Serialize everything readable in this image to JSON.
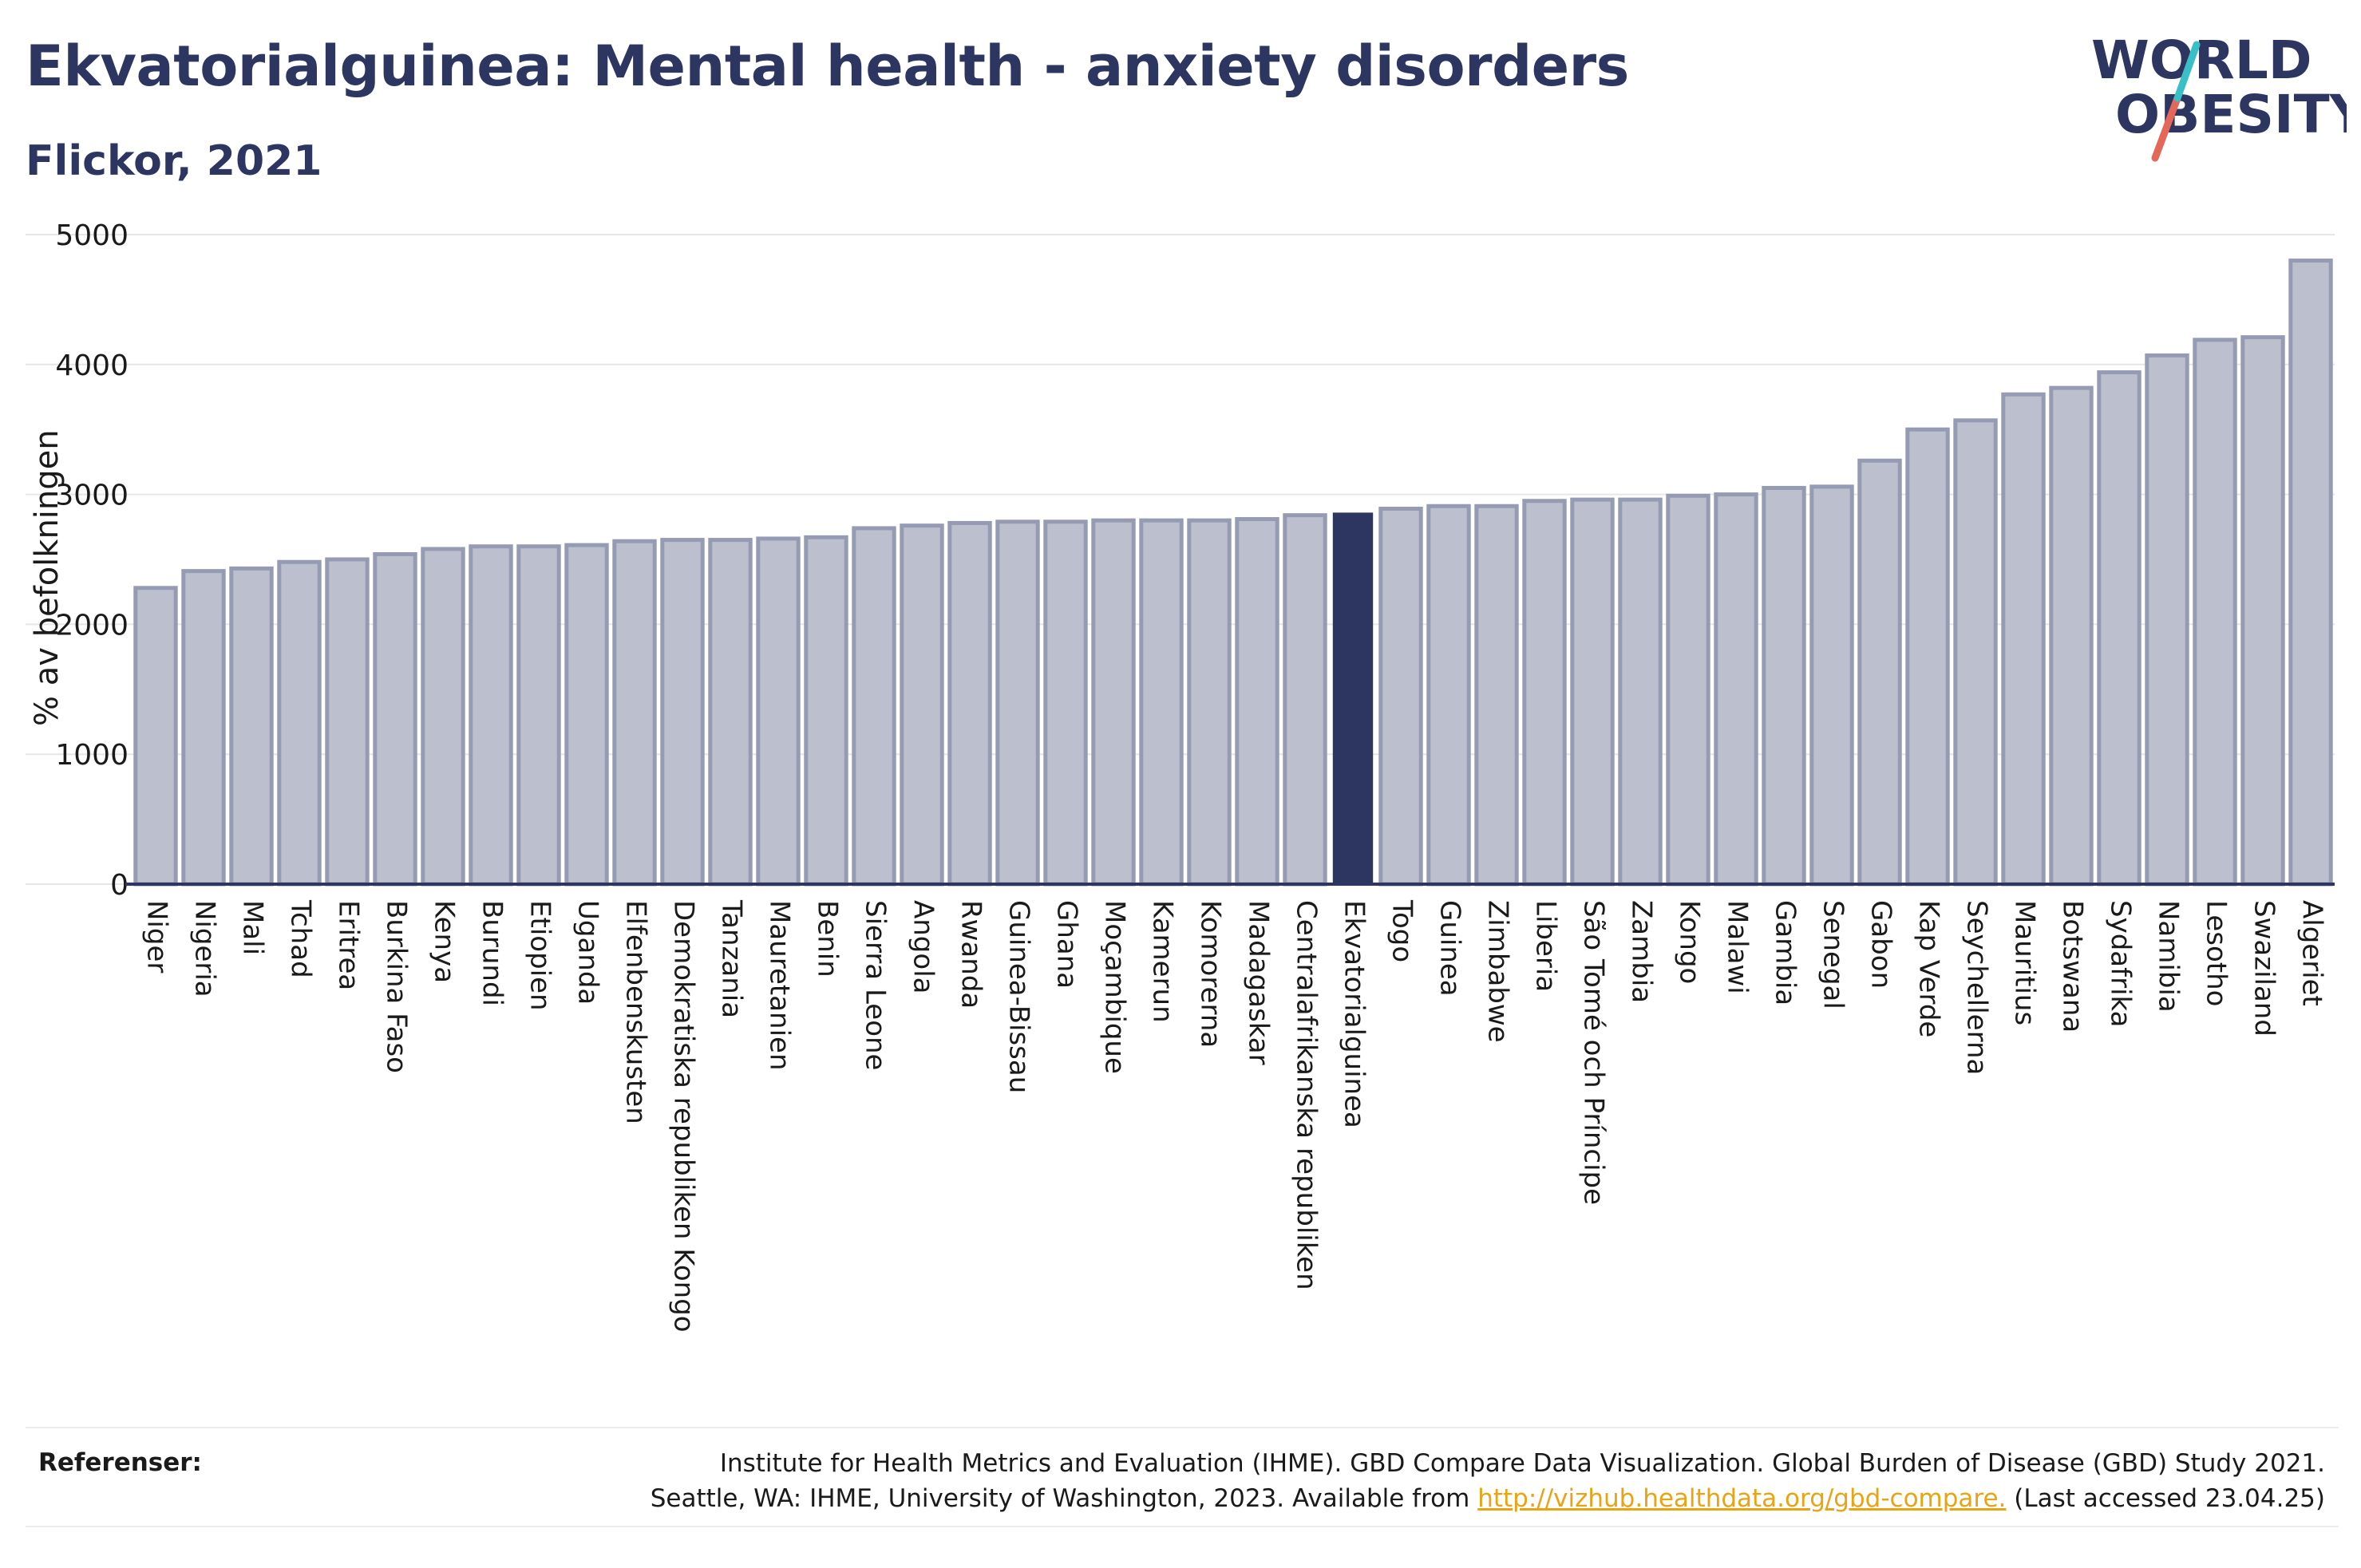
{
  "title": "Ekvatorialguinea: Mental health - anxiety disorders",
  "subtitle": "Flickor, 2021",
  "logo": {
    "line1": "WORLD",
    "line2": "OBESITY"
  },
  "references": {
    "label": "Referenser:",
    "line1": "Institute for Health Metrics and Evaluation (IHME). GBD Compare Data Visualization. Global Burden of Disease (GBD) Study 2021.",
    "line2_prefix": "Seattle, WA: IHME, University of Washington, 2023. Available from ",
    "link": "http://vizhub.healthdata.org/gbd-compare.",
    "line2_suffix": " (Last accessed 23.04.25)"
  },
  "colors": {
    "bar": "#bcc0ce",
    "bar_border": "#959bb3",
    "highlight": "#2d3561",
    "title": "#2d3561",
    "link": "#e8a412"
  },
  "chart_data": {
    "type": "bar",
    "ylabel": "% av befolkningen",
    "ylim": [
      0,
      5000
    ],
    "yticks": [
      0,
      1000,
      2000,
      3000,
      4000,
      5000
    ],
    "grid": true,
    "highlight": "Ekvatorialguinea",
    "categories": [
      "Niger",
      "Nigeria",
      "Mali",
      "Tchad",
      "Eritrea",
      "Burkina Faso",
      "Kenya",
      "Burundi",
      "Etiopien",
      "Uganda",
      "Elfenbenskusten",
      "Demokratiska republiken Kongo",
      "Tanzania",
      "Mauretanien",
      "Benin",
      "Sierra Leone",
      "Angola",
      "Rwanda",
      "Guinea-Bissau",
      "Ghana",
      "Moçambique",
      "Kamerun",
      "Komorerna",
      "Madagaskar",
      "Centralafrikanska republiken",
      "Ekvatorialguinea",
      "Togo",
      "Guinea",
      "Zimbabwe",
      "Liberia",
      "São Tomé och Príncipe",
      "Zambia",
      "Kongo",
      "Malawi",
      "Gambia",
      "Senegal",
      "Gabon",
      "Kap Verde",
      "Seychellerna",
      "Mauritius",
      "Botswana",
      "Sydafrika",
      "Namibia",
      "Lesotho",
      "Swaziland",
      "Algeriet"
    ],
    "values": [
      2280,
      2410,
      2430,
      2480,
      2500,
      2540,
      2580,
      2600,
      2600,
      2610,
      2640,
      2650,
      2650,
      2660,
      2670,
      2740,
      2760,
      2780,
      2790,
      2790,
      2800,
      2800,
      2800,
      2810,
      2840,
      2860,
      2890,
      2910,
      2910,
      2950,
      2960,
      2960,
      2990,
      3000,
      3050,
      3060,
      3260,
      3500,
      3570,
      3770,
      3820,
      3940,
      4070,
      4190,
      4210,
      4800
    ]
  }
}
